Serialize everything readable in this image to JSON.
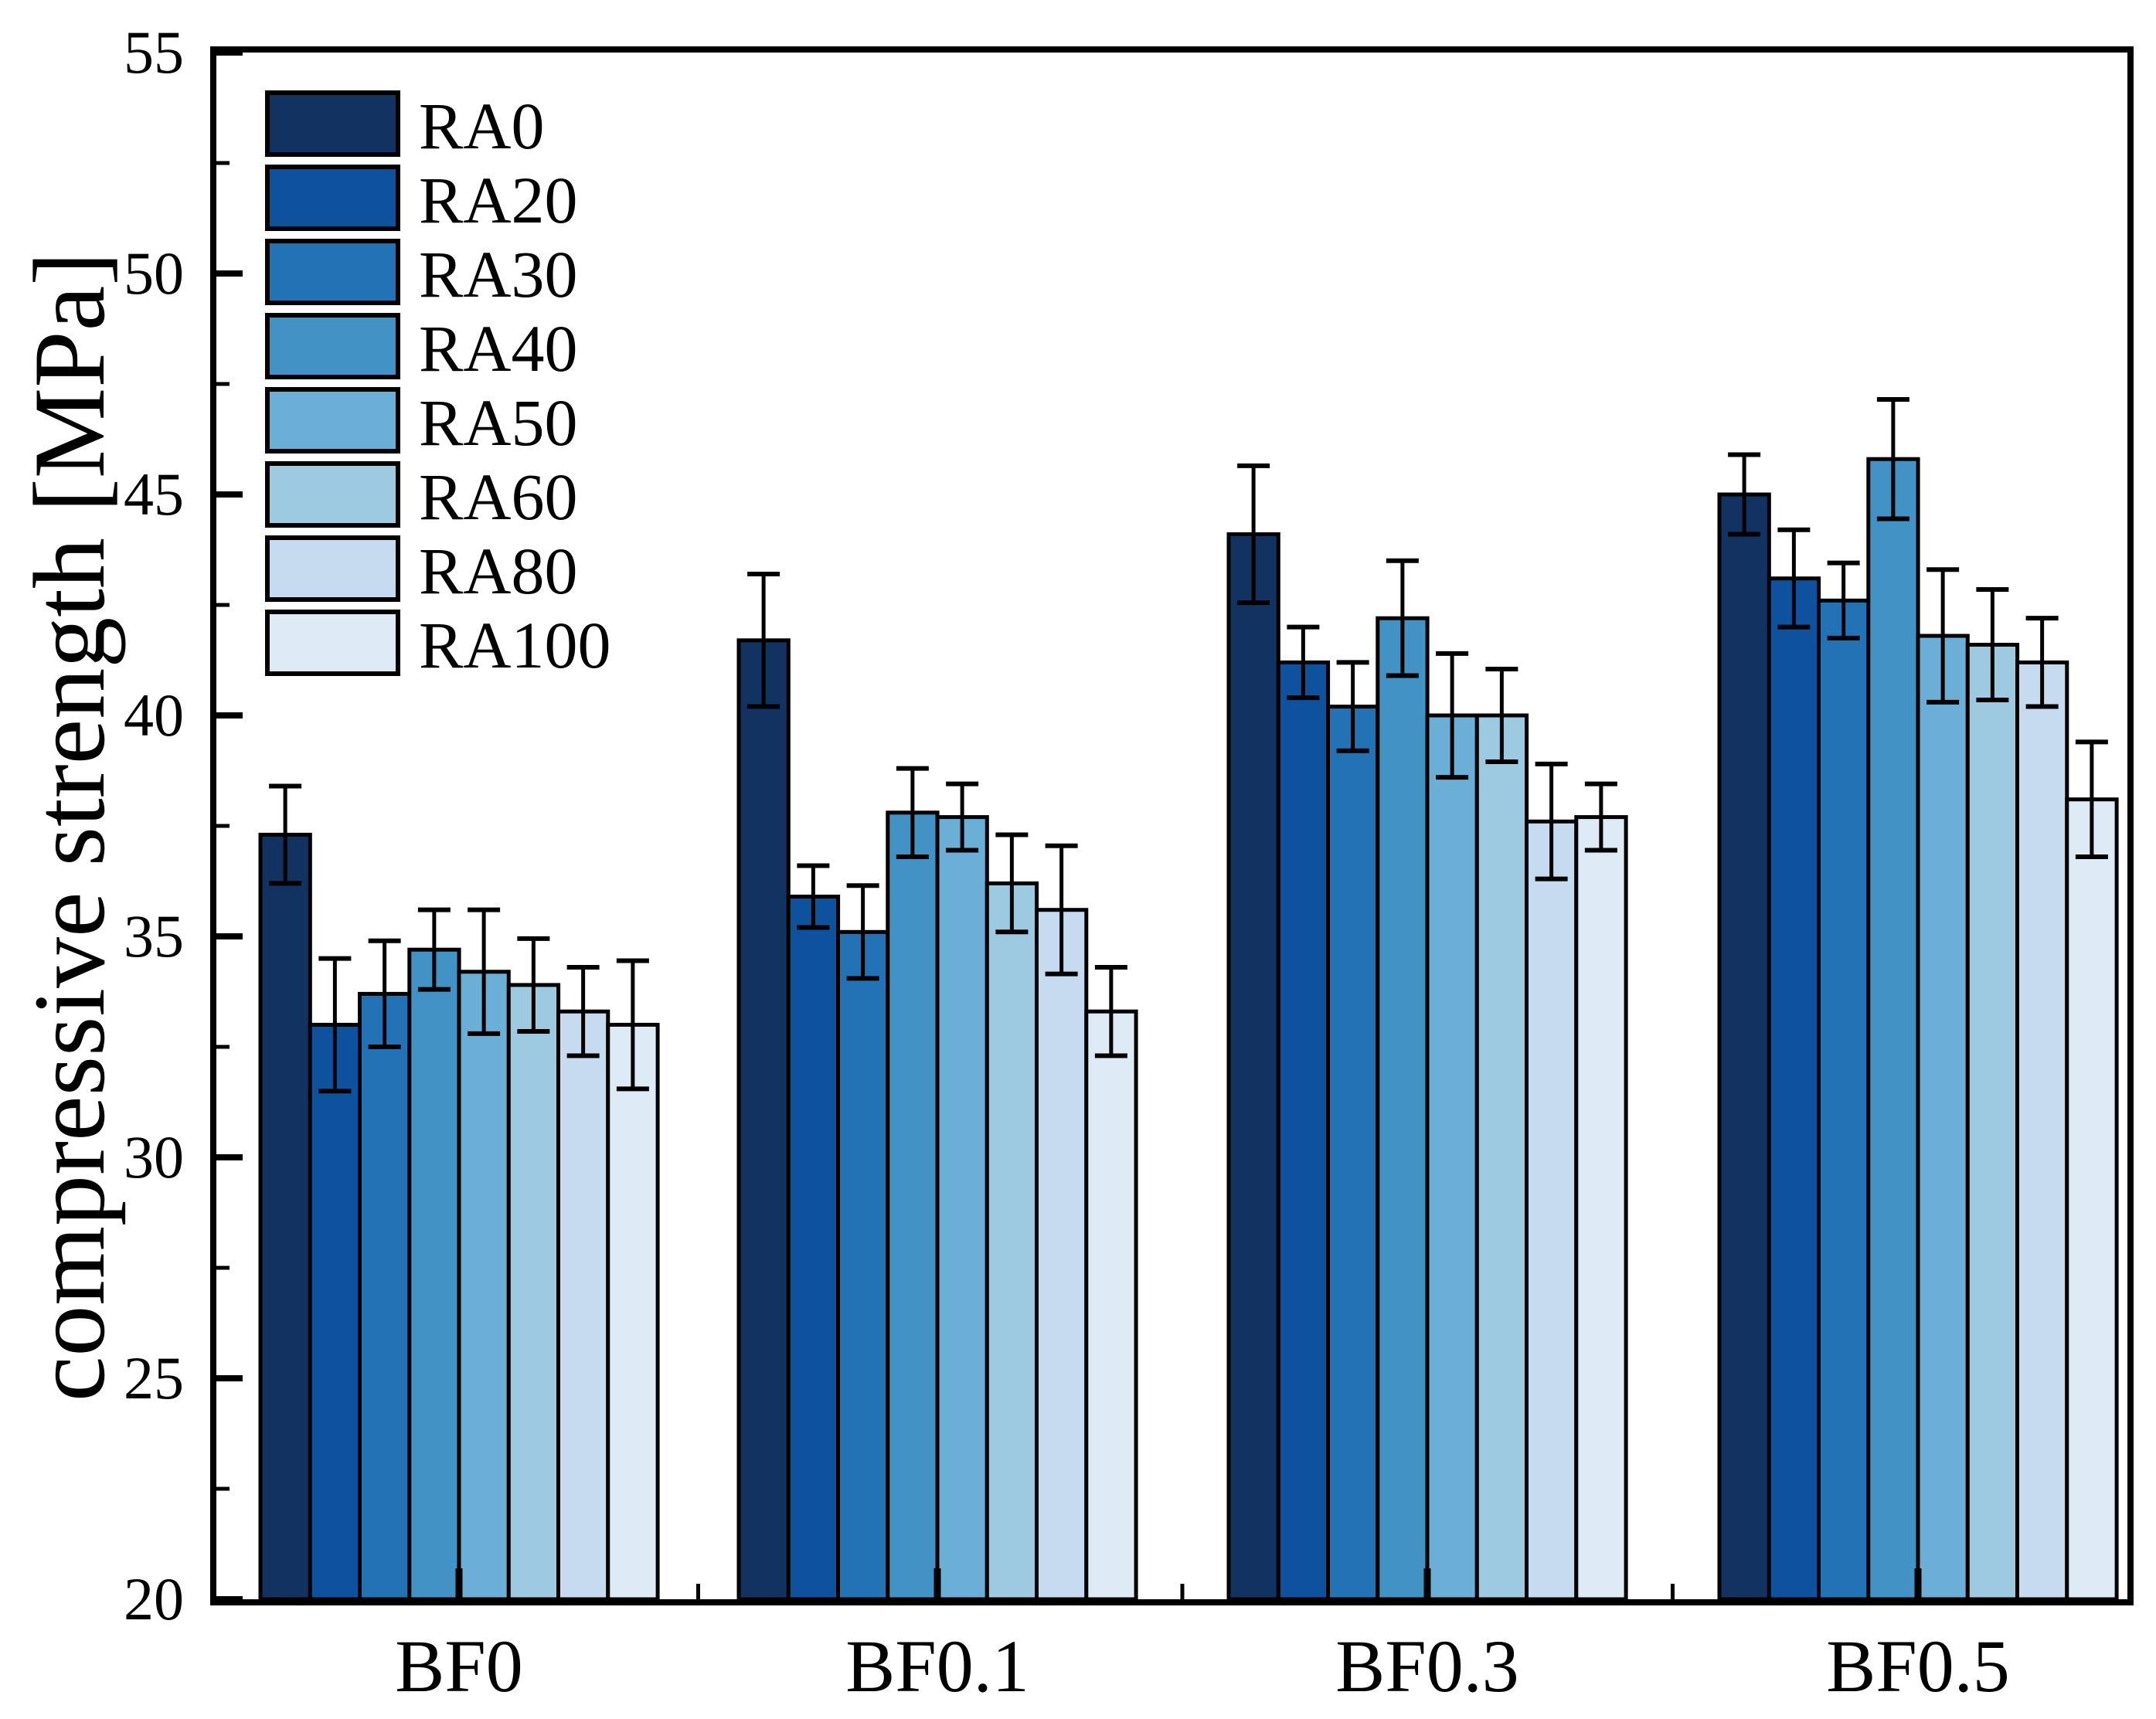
{
  "figure": {
    "background": "#ffffff",
    "frame_color": "#000000"
  },
  "chart_data": {
    "type": "bar",
    "title": "",
    "xlabel": "",
    "ylabel": "compressive strength [MPa]",
    "categories": [
      "BF0",
      "BF0.1",
      "BF0.3",
      "BF0.5"
    ],
    "ylim": [
      20,
      55
    ],
    "y_major_ticks": [
      55,
      50,
      45,
      40,
      35,
      30,
      25,
      20
    ],
    "y_minor_ticks": [
      52.5,
      47.5,
      42.5,
      37.5,
      32.5,
      27.5,
      22.5
    ],
    "grid": false,
    "legend_position": "upper-left-inside",
    "bar_edge_color": "#000000",
    "error_bar_color": "#000000",
    "series": [
      {
        "name": "RA0",
        "color": "#123262",
        "values": [
          37.3,
          41.7,
          44.1,
          45.0
        ],
        "errors": [
          1.1,
          1.5,
          1.55,
          0.9
        ]
      },
      {
        "name": "RA20",
        "color": "#0E519D",
        "values": [
          33.0,
          35.9,
          41.2,
          43.1
        ],
        "errors": [
          1.5,
          0.7,
          0.8,
          1.1
        ]
      },
      {
        "name": "RA30",
        "color": "#2472B6",
        "values": [
          33.7,
          35.1,
          40.2,
          42.6
        ],
        "errors": [
          1.2,
          1.05,
          1.0,
          0.85
        ]
      },
      {
        "name": "RA40",
        "color": "#4292C6",
        "values": [
          34.7,
          37.8,
          42.2,
          45.8
        ],
        "errors": [
          0.9,
          1.0,
          1.3,
          1.35
        ]
      },
      {
        "name": "RA50",
        "color": "#6BAED6",
        "values": [
          34.2,
          37.7,
          40.0,
          41.8
        ],
        "errors": [
          1.4,
          0.75,
          1.4,
          1.5
        ]
      },
      {
        "name": "RA60",
        "color": "#9ECAE1",
        "values": [
          33.9,
          36.2,
          40.0,
          41.6
        ],
        "errors": [
          1.05,
          1.1,
          1.05,
          1.25
        ]
      },
      {
        "name": "RA80",
        "color": "#C6DBEF",
        "values": [
          33.3,
          35.6,
          37.6,
          41.2
        ],
        "errors": [
          1.0,
          1.45,
          1.3,
          1.0
        ]
      },
      {
        "name": "RA100",
        "color": "#DEEBF7",
        "values": [
          33.0,
          33.3,
          37.7,
          38.1
        ],
        "errors": [
          1.45,
          1.0,
          0.75,
          1.3
        ]
      }
    ]
  }
}
